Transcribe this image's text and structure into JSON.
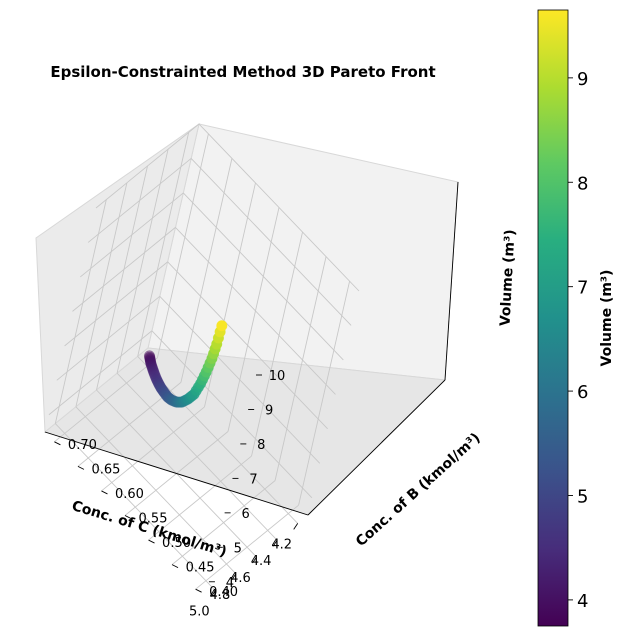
{
  "chart_data": {
    "type": "scatter",
    "projection": "3d",
    "title": "Epsilon-Constrainted Method 3D Pareto Front",
    "xlabel": "Conc. of C (kmol/m³)",
    "ylabel": "Conc. of B (kmol/m³)",
    "zlabel": "Volume (m³)",
    "colorbar_label": "Volume (m³)",
    "colormap": "viridis",
    "xlim": [
      4.1,
      5.1
    ],
    "ylim": [
      0.38,
      0.72
    ],
    "zlim": [
      3.5,
      10
    ],
    "xticks": [
      "4.2",
      "4.4",
      "4.6",
      "4.8",
      "5.0"
    ],
    "yticks": [
      "0.40",
      "0.45",
      "0.50",
      "0.55",
      "0.60",
      "0.65",
      "0.70"
    ],
    "zticks": [
      "4",
      "5",
      "6",
      "7",
      "8",
      "9",
      "10"
    ],
    "colorbar_range": [
      3.75,
      9.65
    ],
    "colorbar_ticks": [
      "4",
      "5",
      "6",
      "7",
      "8",
      "9"
    ],
    "grid": true,
    "points": [
      {
        "x": 4.2,
        "y": 0.7,
        "z": 3.8
      },
      {
        "x": 4.25,
        "y": 0.69,
        "z": 3.95
      },
      {
        "x": 4.3,
        "y": 0.68,
        "z": 4.1
      },
      {
        "x": 4.35,
        "y": 0.668,
        "z": 4.25
      },
      {
        "x": 4.4,
        "y": 0.656,
        "z": 4.4
      },
      {
        "x": 4.45,
        "y": 0.643,
        "z": 4.55
      },
      {
        "x": 4.5,
        "y": 0.63,
        "z": 4.72
      },
      {
        "x": 4.55,
        "y": 0.617,
        "z": 4.9
      },
      {
        "x": 4.6,
        "y": 0.603,
        "z": 5.1
      },
      {
        "x": 4.65,
        "y": 0.588,
        "z": 5.3
      },
      {
        "x": 4.7,
        "y": 0.573,
        "z": 5.55
      },
      {
        "x": 4.75,
        "y": 0.556,
        "z": 5.85
      },
      {
        "x": 4.8,
        "y": 0.54,
        "z": 6.2
      },
      {
        "x": 4.84,
        "y": 0.525,
        "z": 6.6
      },
      {
        "x": 4.87,
        "y": 0.512,
        "z": 7.0
      },
      {
        "x": 4.89,
        "y": 0.502,
        "z": 7.5
      },
      {
        "x": 4.91,
        "y": 0.494,
        "z": 8.0
      },
      {
        "x": 4.92,
        "y": 0.488,
        "z": 8.5
      },
      {
        "x": 4.93,
        "y": 0.484,
        "z": 9.0
      },
      {
        "x": 4.94,
        "y": 0.481,
        "z": 9.6
      }
    ]
  }
}
